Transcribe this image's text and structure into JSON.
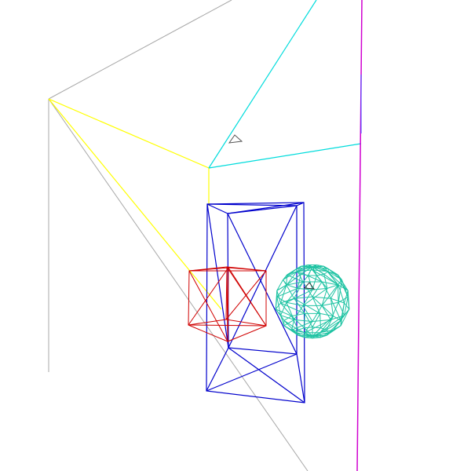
{
  "scene": {
    "background": "#ffffff",
    "colors": {
      "room_edges": "#a8a8a8",
      "yellow_frame": "#ffff00",
      "cyan_frame": "#00dcdc",
      "magenta_line": "#d000d0",
      "blue_box": "#0000cc",
      "red_cube": "#d00000",
      "teal_sphere": "#1fc3a3",
      "markers": "#555555"
    },
    "objects": [
      "room-wireframe",
      "yellow-frame",
      "cyan-frame",
      "magenta-vertical-line",
      "blue-wireframe-box",
      "red-wireframe-cube",
      "teal-wireframe-sphere",
      "triangle-marker"
    ]
  }
}
